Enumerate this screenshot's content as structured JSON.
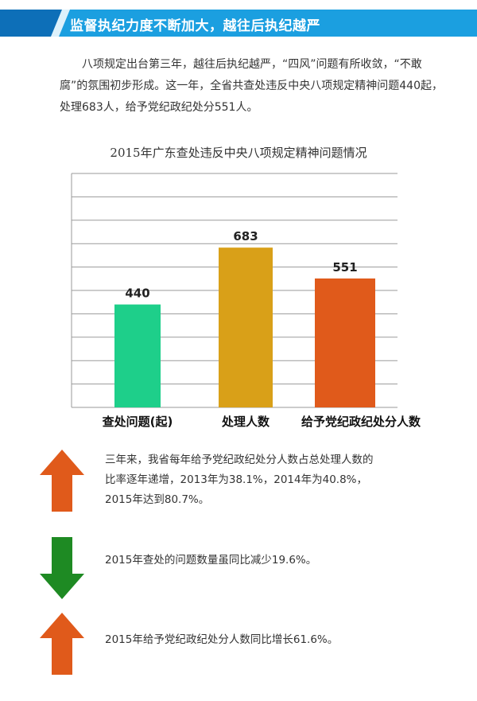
{
  "banner": {
    "title": "监督执纪力度不断加大，越往后执纪越严"
  },
  "intro": "八项规定出台第三年，越往后执纪越严，“四风”问题有所收敛，“不敢腐”的氛围初步形成。这一年，全省共查处违反中央八项规定精神问题440起，处理683人，给予党纪政纪处分551人。",
  "chart_data": {
    "type": "bar",
    "title": "2015年广东查处违反中央八项规定精神问题情况",
    "categories": [
      "查处问题(起)",
      "处理人数",
      "给予党纪政纪处分人数"
    ],
    "values": [
      440,
      683,
      551
    ],
    "value_labels": [
      "440",
      "683",
      "551"
    ],
    "ylim": [
      0,
      1000
    ],
    "grid": true,
    "colors": [
      "#1ecf8a",
      "#d9a018",
      "#e05a1b"
    ]
  },
  "notes": [
    {
      "icon": "up-arrow-icon",
      "color": "#e05a1b",
      "lines": [
        "三年来，我省每年给予党纪政纪处分人数占总处理人数的",
        "比率逐年递增，2013年为38.1%，2014年为40.8%，",
        "2015年达到80.7%。"
      ]
    },
    {
      "icon": "down-arrow-icon",
      "color": "#1e8a23",
      "lines": [
        "2015年查处的问题数量虽同比减少19.6%。"
      ]
    },
    {
      "icon": "up-arrow-icon",
      "color": "#e05a1b",
      "lines": [
        "2015年给予党纪政纪处分人数同比增长61.6%。"
      ]
    }
  ]
}
